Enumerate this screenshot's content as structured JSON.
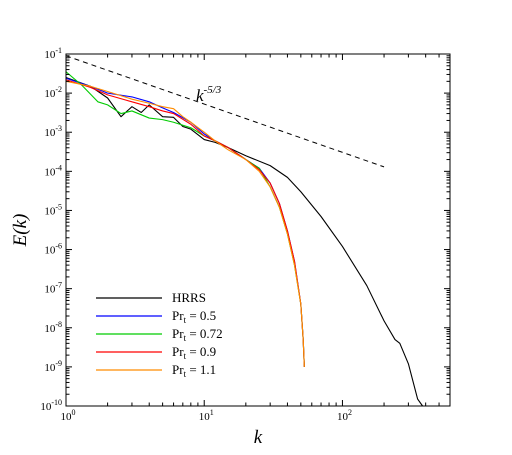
{
  "chart_data": {
    "type": "line",
    "title": "",
    "xlabel": "k",
    "ylabel": "E(k)",
    "x_scale": "log",
    "y_scale": "log",
    "xlim": [
      1,
      600
    ],
    "ylim": [
      1e-10,
      0.1
    ],
    "grid": false,
    "legend_position": "bottom-left",
    "x_ticks": [
      {
        "value": 1,
        "base": "10",
        "exp": "0"
      },
      {
        "value": 10,
        "base": "10",
        "exp": "1"
      },
      {
        "value": 100,
        "base": "10",
        "exp": "2"
      }
    ],
    "y_ticks": [
      {
        "value": 1e-10,
        "base": "10",
        "exp": "-10"
      },
      {
        "value": 1e-09,
        "base": "10",
        "exp": "-9"
      },
      {
        "value": 1e-08,
        "base": "10",
        "exp": "-8"
      },
      {
        "value": 1e-07,
        "base": "10",
        "exp": "-7"
      },
      {
        "value": 1e-06,
        "base": "10",
        "exp": "-6"
      },
      {
        "value": 1e-05,
        "base": "10",
        "exp": "-5"
      },
      {
        "value": 0.0001,
        "base": "10",
        "exp": "-4"
      },
      {
        "value": 0.001,
        "base": "10",
        "exp": "-3"
      },
      {
        "value": 0.01,
        "base": "10",
        "exp": "-2"
      },
      {
        "value": 0.1,
        "base": "10",
        "exp": "-1"
      }
    ],
    "series": [
      {
        "name": "HRRS",
        "name_main": "HRRS",
        "name_sub": "",
        "name_tail": "",
        "color": "#000000",
        "points": [
          [
            1,
            0.025
          ],
          [
            1.5,
            0.015
          ],
          [
            2,
            0.0075
          ],
          [
            2.5,
            0.0025
          ],
          [
            3,
            0.0045
          ],
          [
            3.5,
            0.0032
          ],
          [
            4,
            0.005
          ],
          [
            5,
            0.0025
          ],
          [
            6,
            0.0024
          ],
          [
            7,
            0.0014
          ],
          [
            8,
            0.0012
          ],
          [
            10,
            0.00065
          ],
          [
            12,
            0.00055
          ],
          [
            15,
            0.0004
          ],
          [
            20,
            0.00025
          ],
          [
            30,
            0.00014
          ],
          [
            40,
            7e-05
          ],
          [
            50,
            3e-05
          ],
          [
            70,
            7e-06
          ],
          [
            100,
            1.2e-06
          ],
          [
            150,
            1.2e-07
          ],
          [
            200,
            1.5e-08
          ],
          [
            240,
            5e-09
          ],
          [
            260,
            4e-09
          ],
          [
            300,
            1.2e-09
          ],
          [
            350,
            1.5e-10
          ],
          [
            380,
            1e-10
          ]
        ]
      },
      {
        "name": "Prt = 0.5",
        "name_main": "Pr",
        "name_sub": "t",
        "name_tail": " = 0.5",
        "color": "#0000ff",
        "points": [
          [
            1,
            0.024
          ],
          [
            1.5,
            0.015
          ],
          [
            2,
            0.01
          ],
          [
            3,
            0.008
          ],
          [
            4,
            0.006
          ],
          [
            5,
            0.0042
          ],
          [
            6,
            0.0032
          ],
          [
            8,
            0.0018
          ],
          [
            10,
            0.0009
          ],
          [
            12,
            0.0006
          ],
          [
            15,
            0.0004
          ],
          [
            20,
            0.0002
          ],
          [
            25,
            0.00012
          ],
          [
            30,
            5e-05
          ],
          [
            35,
            1.5e-05
          ],
          [
            40,
            3e-06
          ],
          [
            45,
            5e-07
          ],
          [
            50,
            4e-08
          ],
          [
            52,
            5e-09
          ],
          [
            53,
            1e-09
          ]
        ]
      },
      {
        "name": "Prt = 0.72",
        "name_main": "Pr",
        "name_sub": "t",
        "name_tail": " = 0.72",
        "color": "#00cc00",
        "points": [
          [
            1,
            0.035
          ],
          [
            1.3,
            0.016
          ],
          [
            1.7,
            0.006
          ],
          [
            2,
            0.005
          ],
          [
            2.5,
            0.003
          ],
          [
            3,
            0.0035
          ],
          [
            4,
            0.0023
          ],
          [
            5,
            0.0021
          ],
          [
            6,
            0.0018
          ],
          [
            8,
            0.0013
          ],
          [
            10,
            0.0008
          ],
          [
            12,
            0.0006
          ],
          [
            15,
            0.0004
          ],
          [
            20,
            0.0002
          ],
          [
            25,
            0.00012
          ],
          [
            30,
            4e-05
          ],
          [
            35,
            1.2e-05
          ],
          [
            40,
            2.5e-06
          ],
          [
            45,
            4e-07
          ],
          [
            50,
            4e-08
          ],
          [
            52,
            5e-09
          ],
          [
            53,
            1e-09
          ]
        ]
      },
      {
        "name": "Prt = 0.9",
        "name_main": "Pr",
        "name_sub": "t",
        "name_tail": " = 0.9",
        "color": "#ff0000",
        "points": [
          [
            1,
            0.022
          ],
          [
            1.5,
            0.014
          ],
          [
            2,
            0.009
          ],
          [
            3,
            0.006
          ],
          [
            4,
            0.0045
          ],
          [
            5,
            0.0035
          ],
          [
            6,
            0.003
          ],
          [
            8,
            0.0016
          ],
          [
            10,
            0.0008
          ],
          [
            12,
            0.0006
          ],
          [
            15,
            0.0004
          ],
          [
            20,
            0.0002
          ],
          [
            25,
            0.00011
          ],
          [
            30,
            5e-05
          ],
          [
            35,
            1.5e-05
          ],
          [
            40,
            3e-06
          ],
          [
            45,
            5e-07
          ],
          [
            50,
            4e-08
          ],
          [
            52,
            5e-09
          ],
          [
            53,
            1e-09
          ]
        ]
      },
      {
        "name": "Prt = 1.1",
        "name_main": "Pr",
        "name_sub": "t",
        "name_tail": " = 1.1",
        "color": "#ff8c00",
        "points": [
          [
            1,
            0.02
          ],
          [
            1.5,
            0.015
          ],
          [
            2,
            0.011
          ],
          [
            3,
            0.007
          ],
          [
            4,
            0.0055
          ],
          [
            5,
            0.0045
          ],
          [
            6,
            0.004
          ],
          [
            7,
            0.0025
          ],
          [
            8,
            0.0018
          ],
          [
            10,
            0.001
          ],
          [
            12,
            0.0006
          ],
          [
            15,
            0.00035
          ],
          [
            20,
            0.0002
          ],
          [
            25,
            0.0001
          ],
          [
            30,
            4e-05
          ],
          [
            35,
            1.2e-05
          ],
          [
            40,
            2.5e-06
          ],
          [
            45,
            4e-07
          ],
          [
            50,
            4e-08
          ],
          [
            52,
            5e-09
          ],
          [
            53,
            1e-09
          ]
        ]
      }
    ],
    "reference_line": {
      "label_base": "k",
      "label_exp": "-5/3",
      "style": "dashed",
      "color": "#000000",
      "points": [
        [
          1,
          0.09
        ],
        [
          200,
          0.00013
        ]
      ]
    }
  }
}
